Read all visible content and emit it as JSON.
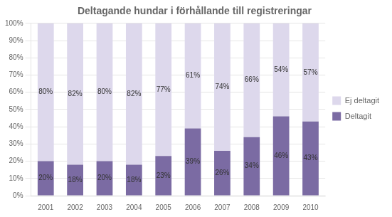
{
  "chart_data": {
    "type": "bar",
    "title": "Deltagande hundar i förhållande till registreringar",
    "categories": [
      "2001",
      "2002",
      "2003",
      "2004",
      "2005",
      "2006",
      "2007",
      "2008",
      "2009",
      "2010"
    ],
    "series": [
      {
        "name": "Deltagit",
        "color": "#7B6BA3",
        "values": [
          20,
          18,
          20,
          18,
          23,
          39,
          26,
          34,
          46,
          43
        ],
        "value_labels": [
          "20%",
          "18%",
          "20%",
          "18%",
          "23%",
          "39%",
          "26%",
          "34%",
          "46%",
          "43%"
        ]
      },
      {
        "name": "Ej deltagit",
        "color": "#DDD8EC",
        "values": [
          80,
          82,
          80,
          82,
          77,
          61,
          74,
          66,
          54,
          57
        ],
        "value_labels": [
          "80%",
          "82%",
          "80%",
          "82%",
          "77%",
          "61%",
          "74%",
          "66%",
          "54%",
          "57%"
        ]
      }
    ],
    "stacked": true,
    "data_labels": true,
    "ylim": [
      0,
      100
    ],
    "yticks": [
      {
        "value": 0,
        "label": "0%"
      },
      {
        "value": 10,
        "label": "10%"
      },
      {
        "value": 20,
        "label": "20%"
      },
      {
        "value": 30,
        "label": "30%"
      },
      {
        "value": 40,
        "label": "40%"
      },
      {
        "value": 50,
        "label": "50%"
      },
      {
        "value": 60,
        "label": "60%"
      },
      {
        "value": 70,
        "label": "70%"
      },
      {
        "value": 80,
        "label": "80%"
      },
      {
        "value": 90,
        "label": "90%"
      },
      {
        "value": 100,
        "label": "100%"
      }
    ],
    "grid": true,
    "legend": "right"
  }
}
